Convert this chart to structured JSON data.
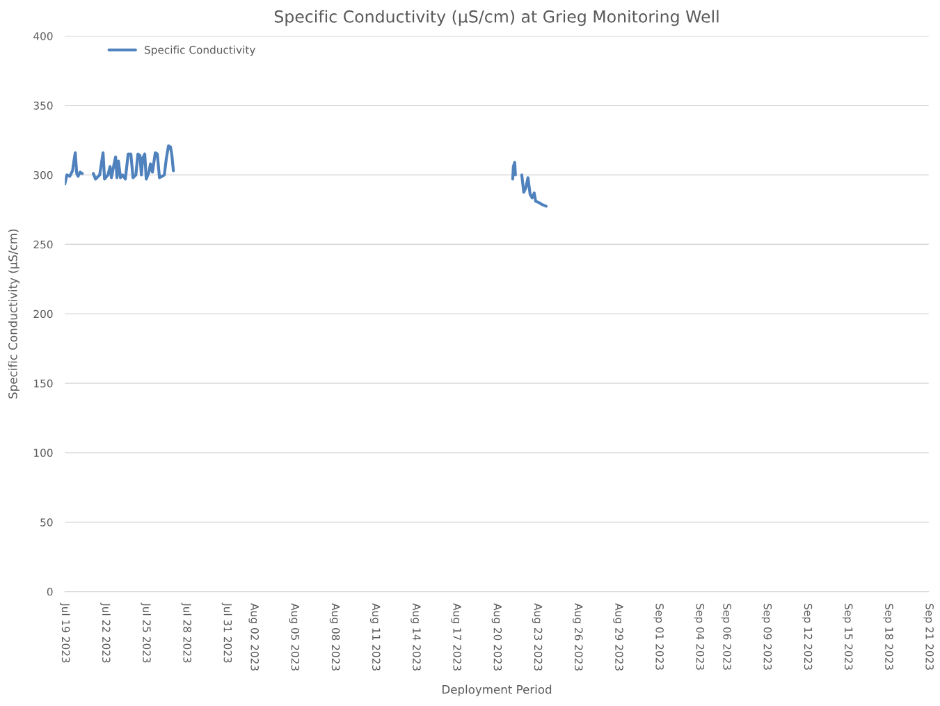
{
  "chart_data": {
    "type": "line",
    "title": "Specific Conductivity (µS/cm) at Grieg Monitoring Well",
    "xlabel": "Deployment Period",
    "ylabel": "Specific Conductivity (µS/cm)",
    "series": [
      {
        "name": "Specific Conductivity",
        "color": "#4f81bd",
        "x": [
          "2023-07-19T00:00",
          "2023-07-19T03:36",
          "2023-07-19T08:38",
          "2023-07-19T13:41",
          "2023-07-19T16:05",
          "2023-07-19T18:29",
          "2023-07-19T21:07",
          "2023-07-19T23:31",
          "2023-07-20T03:07",
          "2023-07-20T06:58",
          "2023-07-20T14:24",
          "2023-07-21T02:38",
          "2023-07-21T06:29",
          "2023-07-21T13:55",
          "2023-07-21T19:55",
          "2023-07-21T22:34",
          "2023-07-22T04:34",
          "2023-07-22T08:24",
          "2023-07-22T10:48",
          "2023-07-22T14:38",
          "2023-07-22T18:14",
          "2023-07-22T20:38",
          "2023-07-22T23:17",
          "2023-07-23T02:53",
          "2023-07-23T06:43",
          "2023-07-23T11:31",
          "2023-07-23T16:34",
          "2023-07-23T21:22",
          "2023-07-24T01:12",
          "2023-07-24T06:14",
          "2023-07-24T09:50",
          "2023-07-24T13:26",
          "2023-07-24T16:05",
          "2023-07-24T18:29",
          "2023-07-24T22:05",
          "2023-07-25T00:43",
          "2023-07-25T05:31",
          "2023-07-25T08:10",
          "2023-07-25T11:46",
          "2023-07-25T16:48",
          "2023-07-25T20:24",
          "2023-07-26T00:14",
          "2023-07-26T05:02",
          "2023-07-26T08:53",
          "2023-07-26T12:29",
          "2023-07-26T16:19",
          "2023-07-26T19:55",
          "2023-07-26T22:19",
          "2023-07-27T00:58",
          "2023-08-08T00:00",
          "2023-08-21T04:19",
          "2023-08-21T05:31",
          "2023-08-21T07:55",
          "2023-08-21T09:07",
          "2023-08-21T14:24",
          "2023-08-21T20:24",
          "2023-08-22T00:00",
          "2023-08-22T03:50",
          "2023-08-22T07:26",
          "2023-08-22T11:17",
          "2023-08-22T14:53",
          "2023-08-22T18:29",
          "2023-08-22T21:07",
          "2023-08-23T03:22",
          "2023-08-23T09:22",
          "2023-08-23T15:36"
        ],
        "values": [
          293.5,
          300,
          299,
          303,
          310,
          316,
          301,
          299,
          302,
          301,
          null,
          301,
          297,
          300,
          316,
          297,
          300,
          306,
          298,
          306,
          313,
          298,
          310,
          298,
          300,
          297,
          315,
          315,
          298,
          300,
          315,
          314,
          300,
          312,
          315,
          297,
          302,
          308,
          302,
          316,
          315,
          298,
          299,
          300,
          312,
          321,
          320,
          314,
          303,
          null,
          297,
          306,
          309,
          300,
          null,
          300,
          287.5,
          291,
          298,
          286,
          283.5,
          287,
          281,
          280,
          278.5,
          277.5
        ]
      }
    ],
    "xlim": [
      "2023-07-19T00:00",
      "2023-09-21T00:00"
    ],
    "xticks": [
      {
        "value": "2023-07-19",
        "label": "Jul 19 2023"
      },
      {
        "value": "2023-07-22",
        "label": "Jul 22 2023"
      },
      {
        "value": "2023-07-25",
        "label": "Jul 25 2023"
      },
      {
        "value": "2023-07-28",
        "label": "Jul 28 2023"
      },
      {
        "value": "2023-07-31",
        "label": "Jul 31 2023"
      },
      {
        "value": "2023-08-02",
        "label": "Aug 02 2023"
      },
      {
        "value": "2023-08-05",
        "label": "Aug 05 2023"
      },
      {
        "value": "2023-08-08",
        "label": "Aug 08 2023"
      },
      {
        "value": "2023-08-11",
        "label": "Aug 11 2023"
      },
      {
        "value": "2023-08-14",
        "label": "Aug 14 2023"
      },
      {
        "value": "2023-08-17",
        "label": "Aug 17 2023"
      },
      {
        "value": "2023-08-20",
        "label": "Aug 20 2023"
      },
      {
        "value": "2023-08-23",
        "label": "Aug 23 2023"
      },
      {
        "value": "2023-08-26",
        "label": "Aug 26 2023"
      },
      {
        "value": "2023-08-29",
        "label": "Aug 29 2023"
      },
      {
        "value": "2023-09-01",
        "label": "Sep 01 2023"
      },
      {
        "value": "2023-09-04",
        "label": "Sep 04 2023"
      },
      {
        "value": "2023-09-06",
        "label": "Sep 06 2023"
      },
      {
        "value": "2023-09-09",
        "label": "Sep 09 2023"
      },
      {
        "value": "2023-09-12",
        "label": "Sep 12 2023"
      },
      {
        "value": "2023-09-15",
        "label": "Sep 15 2023"
      },
      {
        "value": "2023-09-18",
        "label": "Sep 18 2023"
      },
      {
        "value": "2023-09-21",
        "label": "Sep 21 2023"
      }
    ],
    "ylim": [
      0,
      400
    ],
    "yticks": [
      0,
      50,
      100,
      150,
      200,
      250,
      300,
      350,
      400
    ],
    "grid": "y",
    "legend": "top left",
    "marker": "none",
    "line_style": "solid"
  }
}
